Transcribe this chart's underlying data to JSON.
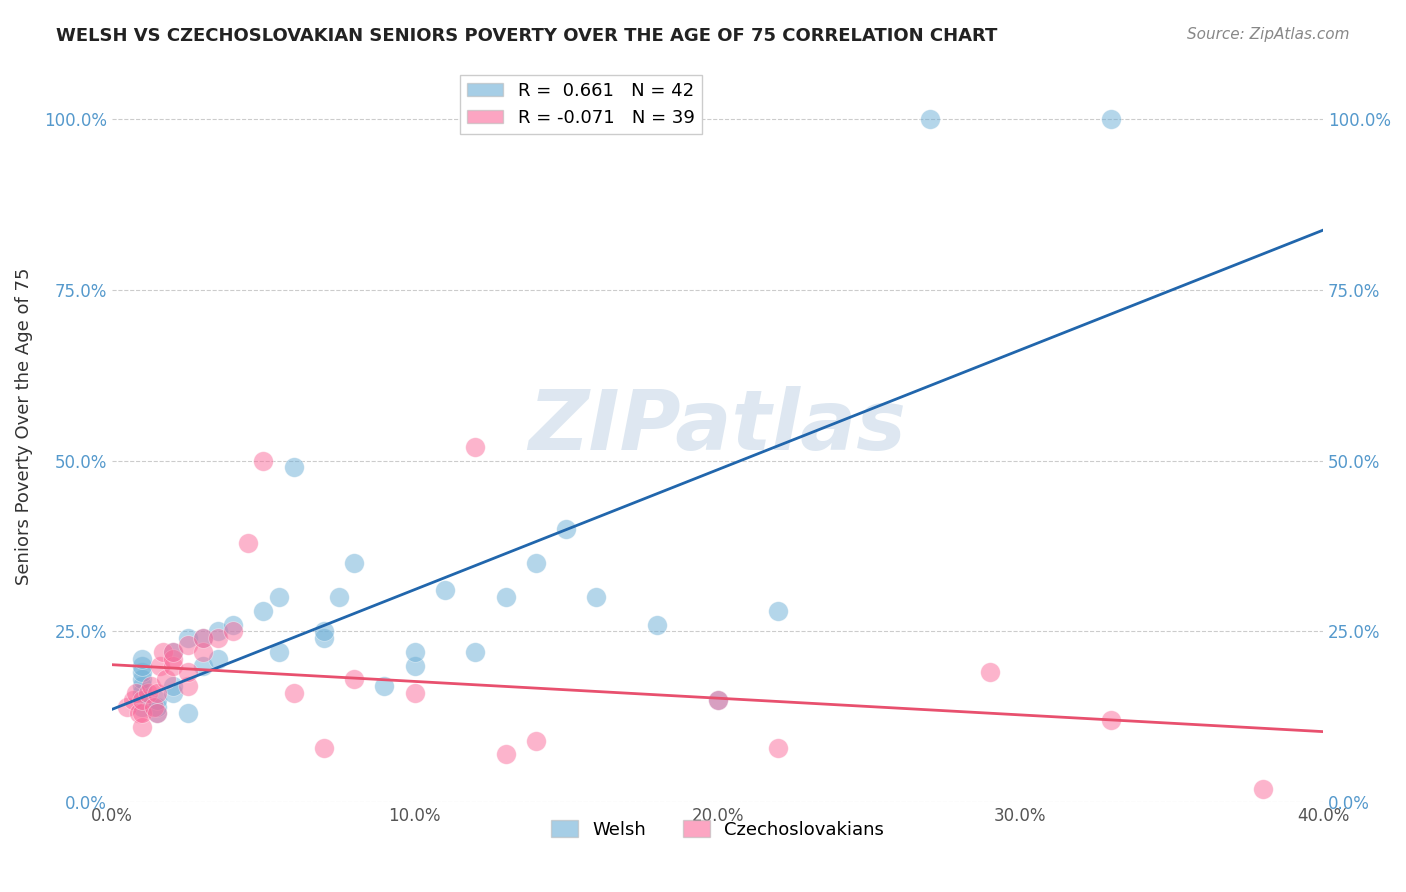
{
  "title": "WELSH VS CZECHOSLOVAKIAN SENIORS POVERTY OVER THE AGE OF 75 CORRELATION CHART",
  "source": "Source: ZipAtlas.com",
  "ylabel": "Seniors Poverty Over the Age of 75",
  "xlabel_welsh": "Welsh",
  "xlabel_czech": "Czechoslovakians",
  "xlim": [
    0.0,
    0.4
  ],
  "ylim": [
    0.0,
    1.1
  ],
  "yticks": [
    0.0,
    0.25,
    0.5,
    0.75,
    1.0
  ],
  "ytick_labels": [
    "0.0%",
    "25.0%",
    "50.0%",
    "75.0%",
    "100.0%"
  ],
  "xticks": [
    0.0,
    0.1,
    0.2,
    0.3,
    0.4
  ],
  "xtick_labels": [
    "0.0%",
    "10.0%",
    "20.0%",
    "30.0%",
    "40.0%"
  ],
  "welsh_R": 0.661,
  "welsh_N": 42,
  "czech_R": -0.071,
  "czech_N": 39,
  "welsh_color": "#6baed6",
  "czech_color": "#fb6a9a",
  "welsh_line_color": "#2166ac",
  "czech_line_color": "#e8506e",
  "watermark": "ZIPatlas",
  "watermark_color": "#c8d8e8",
  "welsh_x": [
    0.01,
    0.01,
    0.01,
    0.01,
    0.01,
    0.01,
    0.01,
    0.015,
    0.015,
    0.015,
    0.02,
    0.02,
    0.02,
    0.025,
    0.025,
    0.03,
    0.03,
    0.035,
    0.035,
    0.04,
    0.05,
    0.055,
    0.055,
    0.06,
    0.07,
    0.07,
    0.075,
    0.08,
    0.09,
    0.1,
    0.1,
    0.11,
    0.12,
    0.13,
    0.14,
    0.15,
    0.16,
    0.18,
    0.2,
    0.22,
    0.27,
    0.33
  ],
  "welsh_y": [
    0.14,
    0.16,
    0.17,
    0.18,
    0.19,
    0.2,
    0.21,
    0.13,
    0.14,
    0.15,
    0.16,
    0.17,
    0.22,
    0.13,
    0.24,
    0.2,
    0.24,
    0.21,
    0.25,
    0.26,
    0.28,
    0.22,
    0.3,
    0.49,
    0.24,
    0.25,
    0.3,
    0.35,
    0.17,
    0.2,
    0.22,
    0.31,
    0.22,
    0.3,
    0.35,
    0.4,
    0.3,
    0.26,
    0.15,
    0.28,
    1.0,
    1.0
  ],
  "czech_x": [
    0.005,
    0.007,
    0.008,
    0.009,
    0.01,
    0.01,
    0.01,
    0.012,
    0.013,
    0.014,
    0.015,
    0.015,
    0.016,
    0.017,
    0.018,
    0.02,
    0.02,
    0.02,
    0.025,
    0.025,
    0.025,
    0.03,
    0.03,
    0.035,
    0.04,
    0.045,
    0.05,
    0.06,
    0.07,
    0.08,
    0.1,
    0.12,
    0.13,
    0.14,
    0.2,
    0.22,
    0.29,
    0.33,
    0.38
  ],
  "czech_y": [
    0.14,
    0.15,
    0.16,
    0.13,
    0.11,
    0.13,
    0.15,
    0.16,
    0.17,
    0.14,
    0.13,
    0.16,
    0.2,
    0.22,
    0.18,
    0.2,
    0.21,
    0.22,
    0.17,
    0.19,
    0.23,
    0.22,
    0.24,
    0.24,
    0.25,
    0.38,
    0.5,
    0.16,
    0.08,
    0.18,
    0.16,
    0.52,
    0.07,
    0.09,
    0.15,
    0.08,
    0.19,
    0.12,
    0.02
  ]
}
